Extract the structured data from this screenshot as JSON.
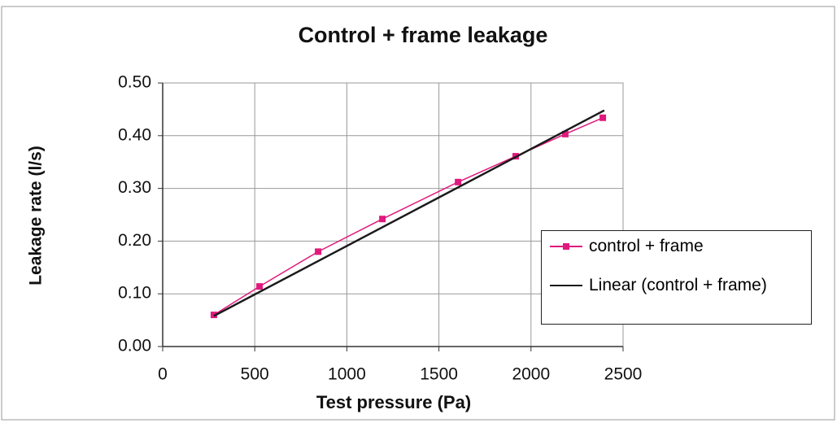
{
  "chart_data": {
    "type": "line",
    "title": "Control + frame leakage",
    "x_label": "Test pressure  (Pa)",
    "y_label": "Leakage rate  (l/s)",
    "series": [
      {
        "name": "control + frame",
        "color": "#e0197d",
        "marker": "square",
        "x": [
          278,
          526,
          844,
          1193,
          1604,
          1917,
          2186,
          2390
        ],
        "values": [
          0.06,
          0.114,
          0.18,
          0.242,
          0.312,
          0.361,
          0.403,
          0.434
        ]
      },
      {
        "name": "Linear (control + frame)",
        "color": "#1a1a1a",
        "marker": "none",
        "x": [
          278,
          2398
        ],
        "values": [
          0.058,
          0.448
        ]
      }
    ],
    "xlim": [
      0,
      2500
    ],
    "xticks": [
      0,
      500,
      1000,
      1500,
      2000,
      2500
    ],
    "ylim": [
      0,
      0.5
    ],
    "yticks": [
      {
        "value": 0,
        "label": "0.00"
      },
      {
        "value": 0.1,
        "label": "0.10"
      },
      {
        "value": 0.2,
        "label": "0.20"
      },
      {
        "value": 0.3,
        "label": "0.30"
      },
      {
        "value": 0.4,
        "label": "0.40"
      },
      {
        "value": 0.5,
        "label": "0.50"
      }
    ],
    "grid": true,
    "legend": "right"
  }
}
